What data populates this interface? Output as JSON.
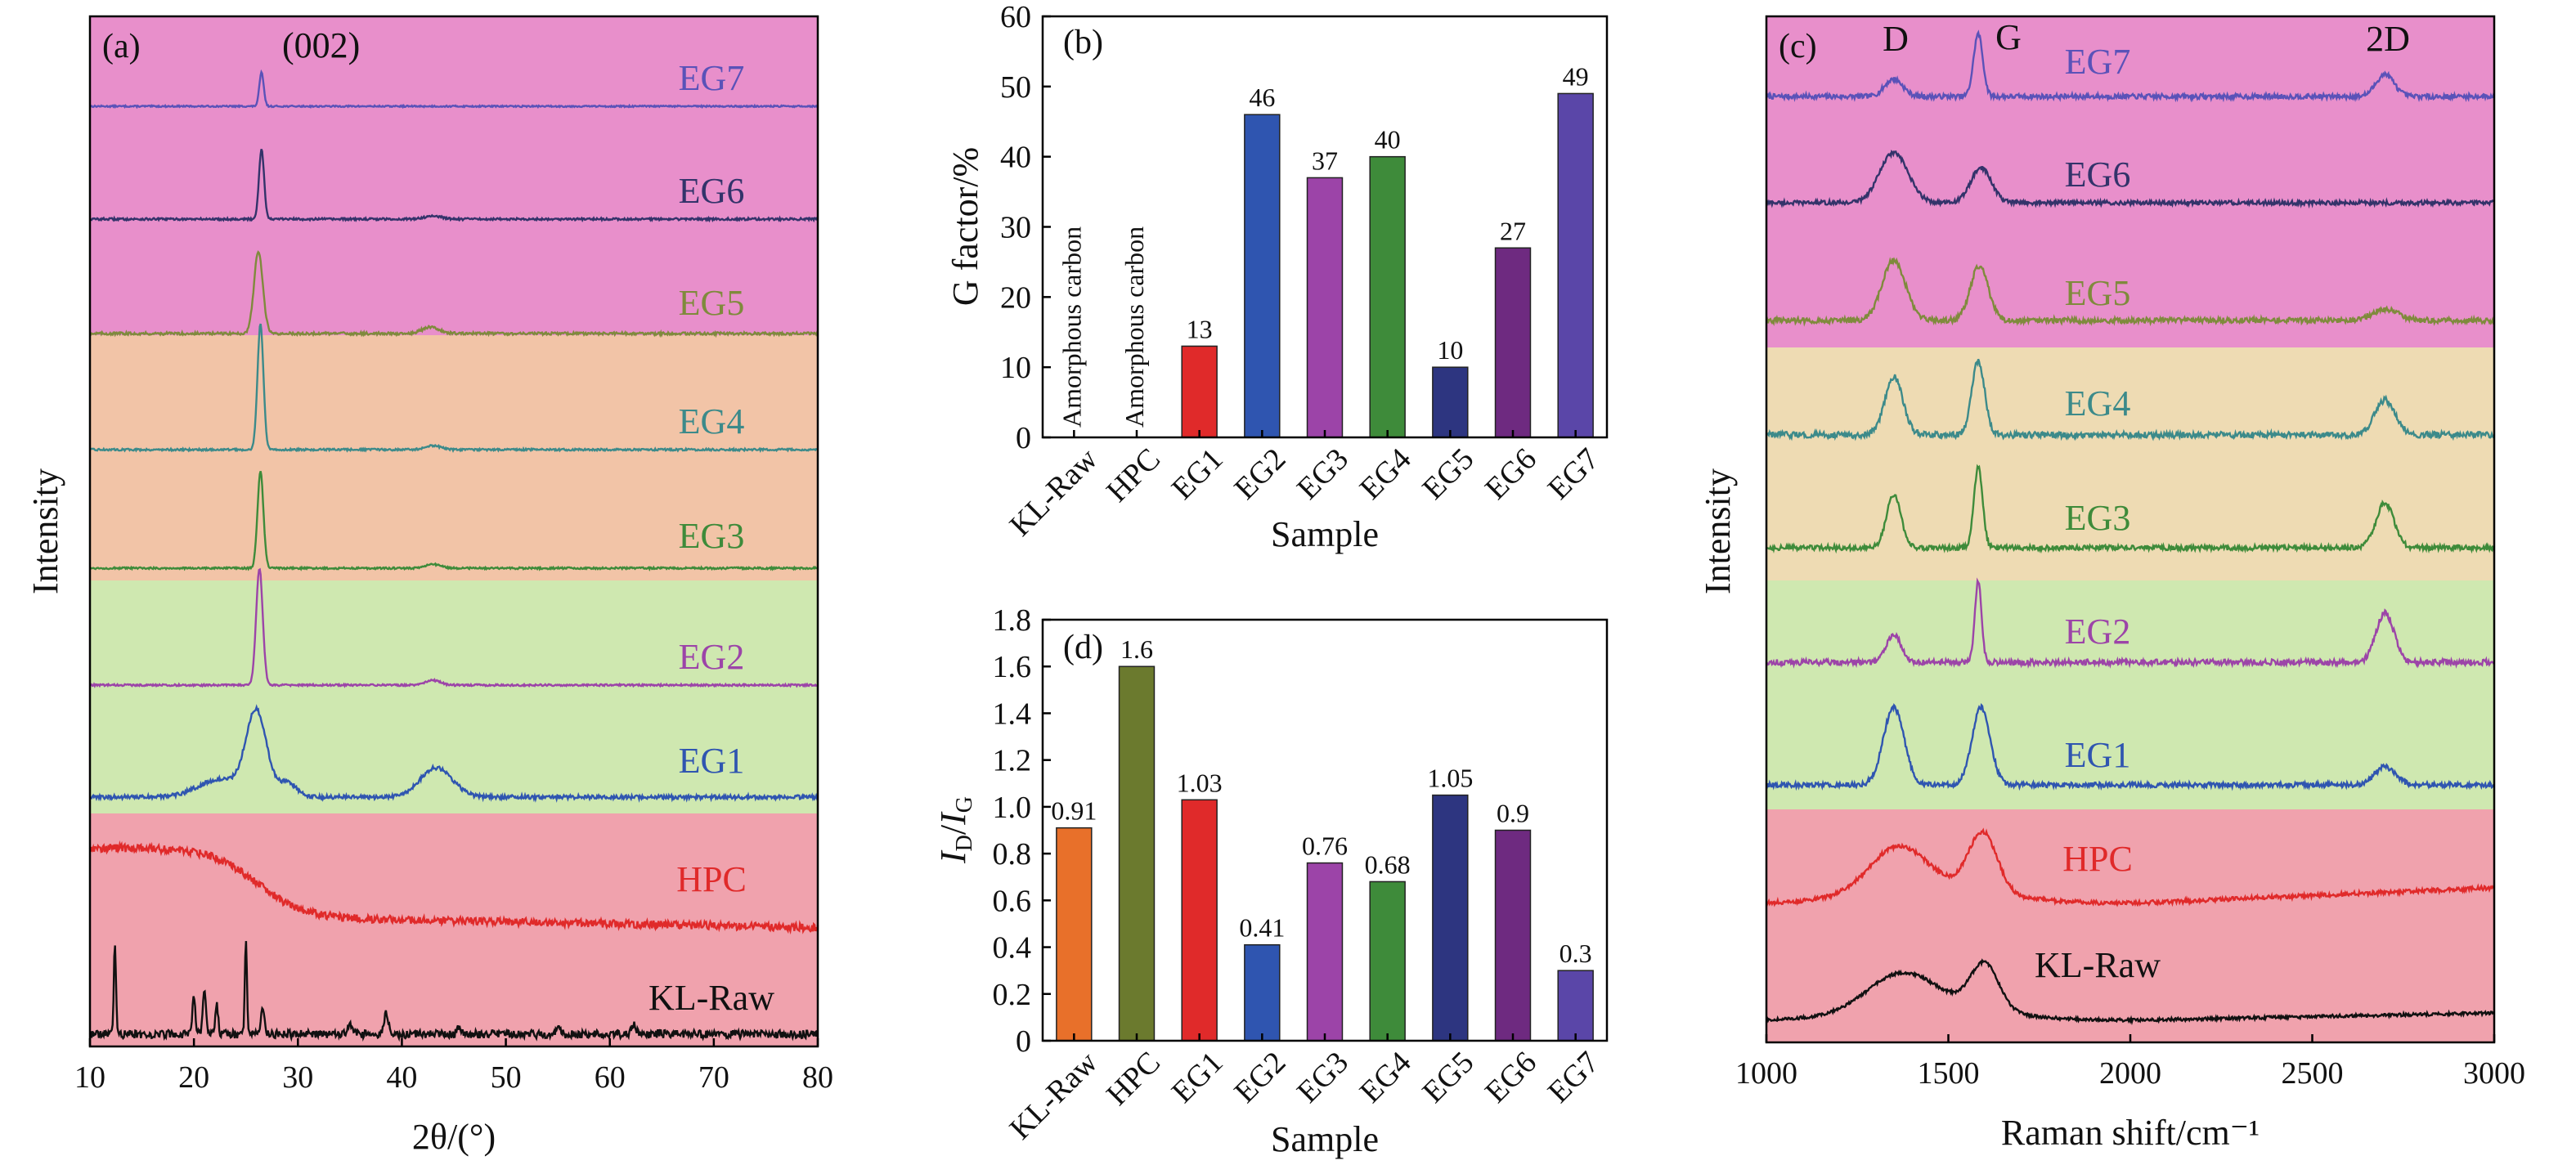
{
  "colors": {
    "pink_band": "#e88fcb",
    "orange_band": "#f2c4a7",
    "green_band": "#cfe8b0",
    "red_band": "#f0a2ad",
    "tan_band": "#eedbb3",
    "KL-Raw": "#111111",
    "HPC": "#e02a2a",
    "EG1": "#2f55b0",
    "EG2": "#9c44a8",
    "EG3": "#3e8b3a",
    "EG4": "#3c8a8a",
    "EG5": "#7f8a3c",
    "EG6": "#33336a",
    "EG7": "#5a52b8"
  },
  "chart_data": [
    {
      "panel": "(a)",
      "type": "line",
      "xlabel": "2θ/(°)",
      "ylabel": "Intensity",
      "xlim": [
        10,
        80
      ],
      "xticks": [
        10,
        20,
        30,
        40,
        50,
        60,
        70,
        80
      ],
      "annotation": "(002)",
      "series": [
        {
          "name": "EG7",
          "peaks": [
            {
              "x": 26.5,
              "height": 0.55,
              "width": 0.3
            }
          ],
          "noise": 0.012
        },
        {
          "name": "EG6",
          "peaks": [
            {
              "x": 26.5,
              "height": 0.9,
              "width": 0.35
            },
            {
              "x": 43,
              "height": 0.04,
              "width": 1.2
            }
          ],
          "noise": 0.014
        },
        {
          "name": "EG5",
          "peaks": [
            {
              "x": 26.2,
              "height": 1.0,
              "width": 0.6
            },
            {
              "x": 42.8,
              "height": 0.08,
              "width": 1.2
            }
          ],
          "noise": 0.016
        },
        {
          "name": "EG4",
          "peaks": [
            {
              "x": 26.4,
              "height": 1.55,
              "width": 0.4
            },
            {
              "x": 43,
              "height": 0.05,
              "width": 1
            }
          ],
          "noise": 0.012
        },
        {
          "name": "EG3",
          "peaks": [
            {
              "x": 26.4,
              "height": 1.25,
              "width": 0.4
            },
            {
              "x": 43,
              "height": 0.05,
              "width": 1
            }
          ],
          "noise": 0.012
        },
        {
          "name": "EG2",
          "peaks": [
            {
              "x": 26.3,
              "height": 1.5,
              "width": 0.45
            },
            {
              "x": 43,
              "height": 0.06,
              "width": 1
            }
          ],
          "noise": 0.012
        },
        {
          "name": "EG1",
          "peaks": [
            {
              "x": 26.0,
              "height": 0.85,
              "width": 1.4
            },
            {
              "x": 22.5,
              "height": 0.18,
              "width": 3
            },
            {
              "x": 29,
              "height": 0.15,
              "width": 1.2
            },
            {
              "x": 43.3,
              "height": 0.3,
              "width": 2.2
            }
          ],
          "noise": 0.02
        },
        {
          "name": "HPC",
          "start": 0.85,
          "shoulder_x": 26,
          "end": 0.0,
          "noise": 0.05
        },
        {
          "name": "KL-Raw",
          "peaks": [
            {
              "x": 12.4,
              "height": 1.1,
              "width": 0.15
            },
            {
              "x": 20.0,
              "height": 0.45,
              "width": 0.2
            },
            {
              "x": 21.0,
              "height": 0.55,
              "width": 0.2
            },
            {
              "x": 22.2,
              "height": 0.35,
              "width": 0.2
            },
            {
              "x": 25.0,
              "height": 1.1,
              "width": 0.15
            },
            {
              "x": 26.6,
              "height": 0.3,
              "width": 0.25
            },
            {
              "x": 35.0,
              "height": 0.15,
              "width": 0.3
            },
            {
              "x": 38.5,
              "height": 0.25,
              "width": 0.3
            },
            {
              "x": 45.5,
              "height": 0.1,
              "width": 0.3
            },
            {
              "x": 55.0,
              "height": 0.08,
              "width": 0.3
            },
            {
              "x": 62.3,
              "height": 0.12,
              "width": 0.3
            }
          ],
          "noise": 0.05
        }
      ]
    },
    {
      "panel": "(b)",
      "type": "bar",
      "xlabel": "Sample",
      "ylabel": "G factor/%",
      "ylim": [
        0,
        60
      ],
      "yticks": [
        0,
        10,
        20,
        30,
        40,
        50,
        60
      ],
      "categories": [
        "KL-Raw",
        "HPC",
        "EG1",
        "EG2",
        "EG3",
        "EG4",
        "EG5",
        "EG6",
        "EG7"
      ],
      "values": [
        null,
        null,
        13,
        46,
        37,
        40,
        10,
        27,
        49
      ],
      "value_labels": [
        "Amorphous carbon",
        "Amorphous carbon",
        "13",
        "46",
        "37",
        "40",
        "10",
        "27",
        "49"
      ],
      "colors": [
        "#e8702a",
        "#6b7a2e",
        "#e02a2a",
        "#2f55b0",
        "#9c44a8",
        "#3e8b3a",
        "#2d3580",
        "#6e2a80",
        "#5a46a8"
      ]
    },
    {
      "panel": "(d)",
      "type": "bar",
      "xlabel": "Sample",
      "ylabel": "ID/IG",
      "ylim": [
        0,
        1.8
      ],
      "yticks": [
        "0",
        "0.2",
        "0.4",
        "0.6",
        "0.8",
        "1.0",
        "1.2",
        "1.4",
        "1.6",
        "1.8"
      ],
      "categories": [
        "KL-Raw",
        "HPC",
        "EG1",
        "EG2",
        "EG3",
        "EG4",
        "EG5",
        "EG6",
        "EG7"
      ],
      "values": [
        0.91,
        1.6,
        1.03,
        0.41,
        0.76,
        0.68,
        1.05,
        0.9,
        0.3
      ],
      "value_labels": [
        "0.91",
        "1.6",
        "1.03",
        "0.41",
        "0.76",
        "0.68",
        "1.05",
        "0.9",
        "0.3"
      ],
      "colors": [
        "#e8702a",
        "#6b7a2e",
        "#e02a2a",
        "#2f55b0",
        "#9c44a8",
        "#3e8b3a",
        "#2d3580",
        "#6e2a80",
        "#5a46a8"
      ]
    },
    {
      "panel": "(c)",
      "type": "line",
      "xlabel": "Raman shift/cm⁻¹",
      "ylabel": "Intensity",
      "xlim": [
        1000,
        3000
      ],
      "xticks": [
        1000,
        1500,
        2000,
        2500,
        3000
      ],
      "peak_labels": [
        "D",
        "G",
        "2D"
      ],
      "series": [
        {
          "name": "EG7",
          "peaks": [
            {
              "x": 1350,
              "height": 0.25,
              "width": 35
            },
            {
              "x": 1582,
              "height": 0.9,
              "width": 18
            },
            {
              "x": 2700,
              "height": 0.32,
              "width": 35
            }
          ],
          "noise": 0.035
        },
        {
          "name": "EG6",
          "peaks": [
            {
              "x": 1350,
              "height": 0.72,
              "width": 55
            },
            {
              "x": 1590,
              "height": 0.5,
              "width": 40
            }
          ],
          "noise": 0.03
        },
        {
          "name": "EG5",
          "peaks": [
            {
              "x": 1350,
              "height": 0.78,
              "width": 45
            },
            {
              "x": 1585,
              "height": 0.7,
              "width": 35
            },
            {
              "x": 2700,
              "height": 0.15,
              "width": 50
            }
          ],
          "noise": 0.035
        },
        {
          "name": "EG4",
          "peaks": [
            {
              "x": 1350,
              "height": 0.75,
              "width": 35
            },
            {
              "x": 1582,
              "height": 0.95,
              "width": 25
            },
            {
              "x": 2700,
              "height": 0.45,
              "width": 40
            }
          ],
          "noise": 0.04
        },
        {
          "name": "EG3",
          "peaks": [
            {
              "x": 1350,
              "height": 0.65,
              "width": 28
            },
            {
              "x": 1582,
              "height": 0.98,
              "width": 17
            },
            {
              "x": 2700,
              "height": 0.55,
              "width": 35
            }
          ],
          "noise": 0.03
        },
        {
          "name": "EG2",
          "peaks": [
            {
              "x": 1350,
              "height": 0.35,
              "width": 28
            },
            {
              "x": 1582,
              "height": 1.0,
              "width": 13
            },
            {
              "x": 2700,
              "height": 0.6,
              "width": 35
            }
          ],
          "noise": 0.035
        },
        {
          "name": "EG1",
          "peaks": [
            {
              "x": 1350,
              "height": 0.95,
              "width": 40
            },
            {
              "x": 1590,
              "height": 0.95,
              "width": 35
            },
            {
              "x": 2700,
              "height": 0.22,
              "width": 40
            }
          ],
          "noise": 0.03
        },
        {
          "name": "HPC",
          "broad": true,
          "peaks": [
            {
              "x": 1360,
              "height": 0.6,
              "width": 110
            },
            {
              "x": 1595,
              "height": 0.85,
              "width": 55
            }
          ],
          "slope": 0.000225,
          "noise": 0.03
        },
        {
          "name": "KL-Raw",
          "broad": true,
          "peaks": [
            {
              "x": 1370,
              "height": 0.55,
              "width": 130
            },
            {
              "x": 1600,
              "height": 0.75,
              "width": 55
            }
          ],
          "slope": 0.00015,
          "noise": 0.025
        }
      ]
    }
  ]
}
